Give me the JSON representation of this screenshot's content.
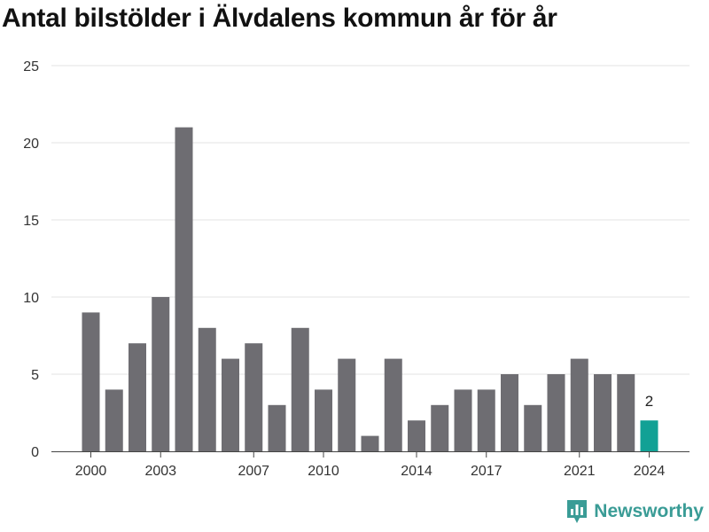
{
  "chart_data": {
    "type": "bar",
    "title": "Antal bilstölder i Älvdalens kommun år för år",
    "categories": [
      2000,
      2001,
      2002,
      2003,
      2004,
      2005,
      2006,
      2007,
      2008,
      2009,
      2010,
      2011,
      2012,
      2013,
      2014,
      2015,
      2016,
      2017,
      2018,
      2019,
      2020,
      2021,
      2022,
      2023,
      2024
    ],
    "values": [
      9,
      4,
      7,
      10,
      21,
      8,
      6,
      7,
      3,
      8,
      4,
      6,
      1,
      6,
      2,
      3,
      4,
      4,
      5,
      3,
      5,
      6,
      5,
      5,
      2
    ],
    "x_tick_labels": [
      "2000",
      "2003",
      "2007",
      "2010",
      "2014",
      "2017",
      "2021",
      "2024"
    ],
    "y_ticks": [
      0,
      5,
      10,
      15,
      20,
      25
    ],
    "ylim": [
      0,
      25
    ],
    "xlabel": "",
    "ylabel": "",
    "grid": true,
    "bar_color": "#6e6d72",
    "highlight_color": "#12a195",
    "highlight_category": 2024,
    "highlight_label": "2"
  },
  "brand": {
    "name": "Newsworthy",
    "icon": "newsworthy-logo-icon",
    "color": "#3a9c96"
  }
}
